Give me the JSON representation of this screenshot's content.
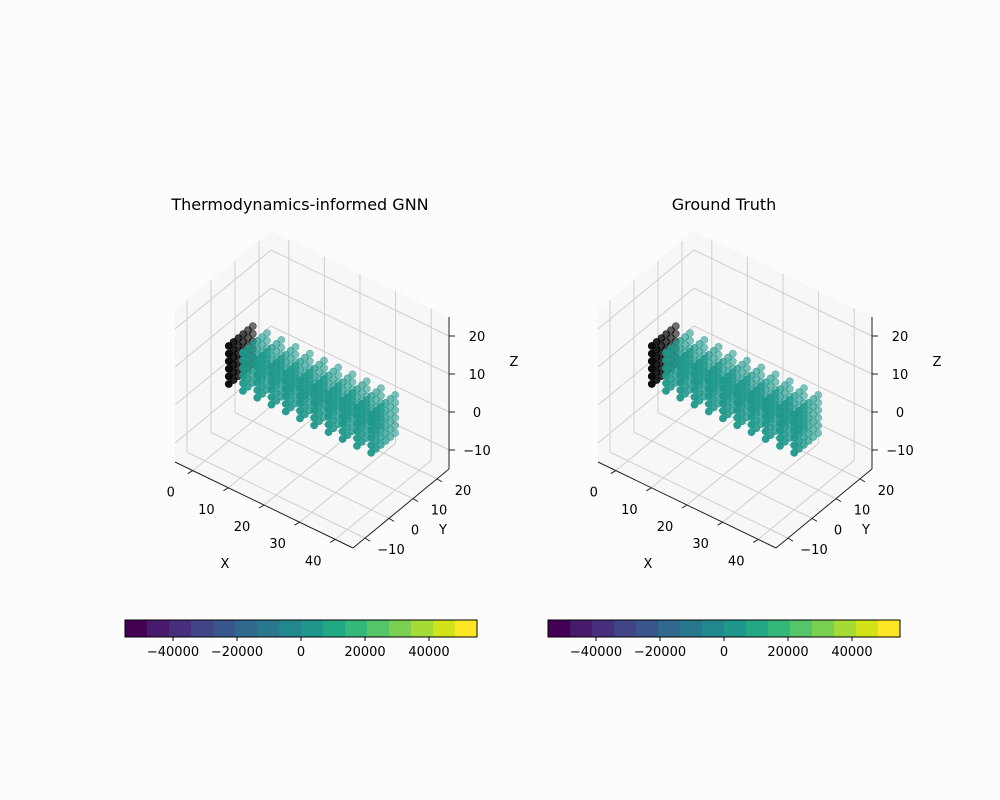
{
  "chart_data": [
    {
      "type": "scatter",
      "title": "Thermodynamics-informed GNN",
      "xlabel": "X",
      "ylabel": "Y",
      "zlabel": "Z",
      "x_ticks": [
        "0",
        "10",
        "20",
        "30",
        "40"
      ],
      "y_ticks": [
        "−10",
        "0",
        "10",
        "20"
      ],
      "z_ticks": [
        "−10",
        "0",
        "10",
        "20"
      ],
      "xlim": [
        -5,
        45
      ],
      "ylim": [
        -15,
        25
      ],
      "zlim": [
        -15,
        25
      ],
      "points": {
        "x_range": [
          0,
          40
        ],
        "y_range": [
          0,
          10
        ],
        "z_range": [
          0,
          10
        ],
        "grid": [
          11,
          6,
          6
        ],
        "color_value": 0,
        "fixed_face_x": 0,
        "fixed_face_color": "#000000"
      },
      "colorbar": {
        "colormap": "viridis",
        "range": [
          -55000,
          55000
        ],
        "ticks": [
          "−40000",
          "−20000",
          "0",
          "20000",
          "40000"
        ]
      }
    },
    {
      "type": "scatter",
      "title": "Ground Truth",
      "xlabel": "X",
      "ylabel": "Y",
      "zlabel": "Z",
      "x_ticks": [
        "0",
        "10",
        "20",
        "30",
        "40"
      ],
      "y_ticks": [
        "−10",
        "0",
        "10",
        "20"
      ],
      "z_ticks": [
        "−10",
        "0",
        "10",
        "20"
      ],
      "xlim": [
        -5,
        45
      ],
      "ylim": [
        -15,
        25
      ],
      "zlim": [
        -15,
        25
      ],
      "points": {
        "x_range": [
          0,
          40
        ],
        "y_range": [
          0,
          10
        ],
        "z_range": [
          0,
          10
        ],
        "grid": [
          11,
          6,
          6
        ],
        "color_value": 0,
        "fixed_face_x": 0,
        "fixed_face_color": "#000000"
      },
      "colorbar": {
        "colormap": "viridis",
        "range": [
          -55000,
          55000
        ],
        "ticks": [
          "−40000",
          "−20000",
          "0",
          "20000",
          "40000"
        ]
      }
    }
  ]
}
